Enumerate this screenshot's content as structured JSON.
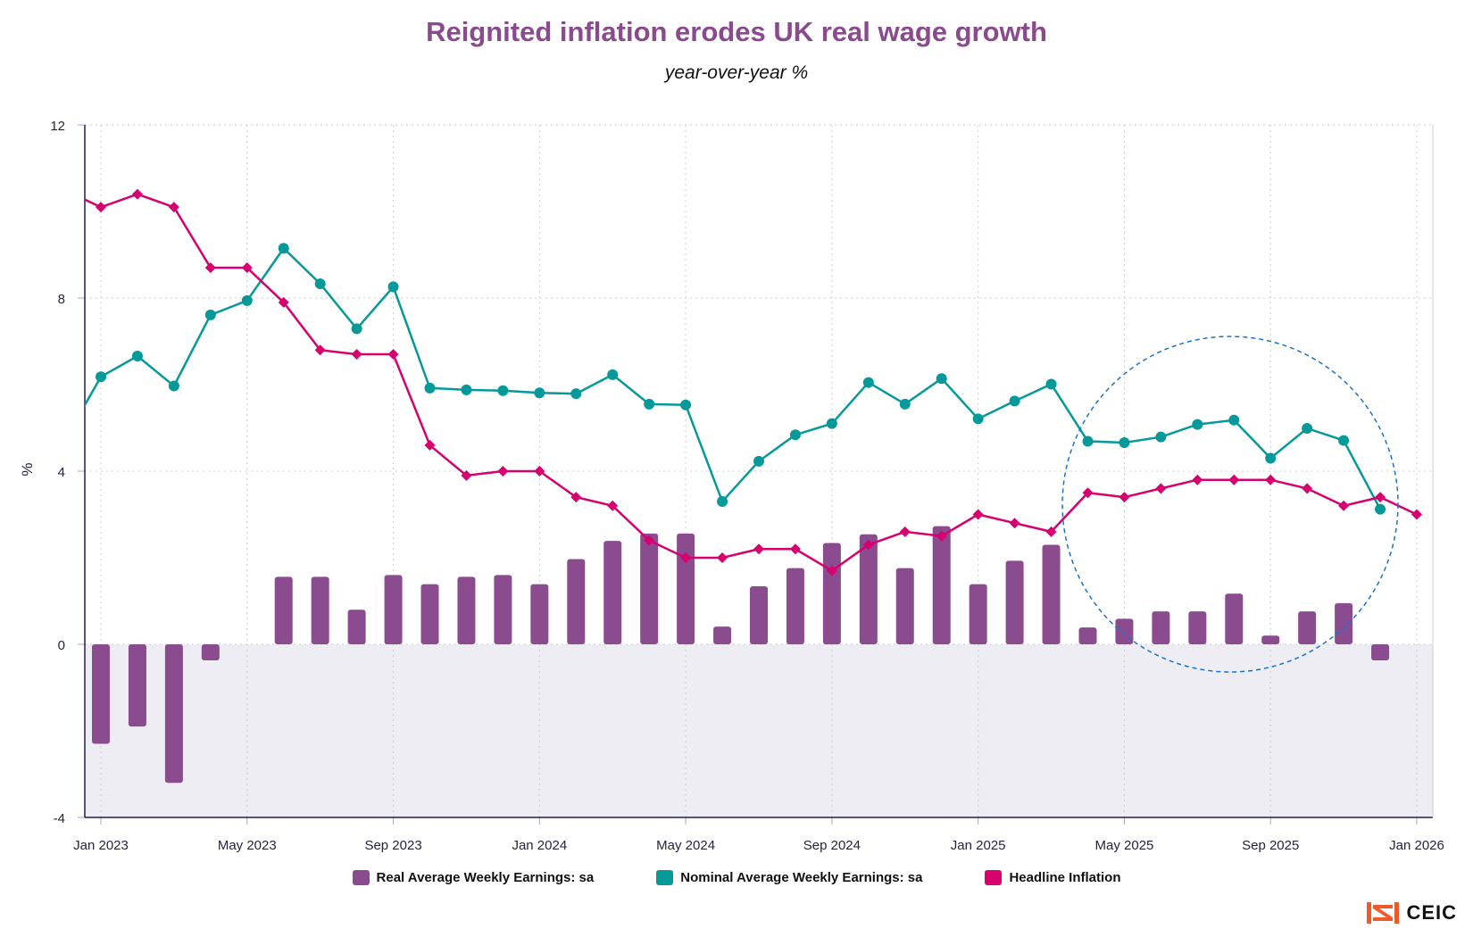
{
  "chart_data": {
    "type": "bar+line",
    "title": "Reignited inflation erodes UK real wage growth",
    "subtitle": "year-over-year %",
    "ylabel": "%",
    "xlabel": "",
    "ylim": [
      -4,
      12
    ],
    "yticks": [
      "-4",
      "0",
      "4",
      "8",
      "12"
    ],
    "xticks": [
      "Jan 2023",
      "May 2023",
      "Sep 2023",
      "Jan 2024",
      "May 2024",
      "Sep 2024",
      "Jan 2025",
      "May 2025",
      "Sep 2025",
      "Jan 2026"
    ],
    "grid": true,
    "legend_position": "bottom",
    "months": [
      "Dec 2022",
      "Jan 2023",
      "Feb 2023",
      "Mar 2023",
      "Apr 2023",
      "May 2023",
      "Jun 2023",
      "Jul 2023",
      "Aug 2023",
      "Sep 2023",
      "Oct 2023",
      "Nov 2023",
      "Dec 2023",
      "Jan 2024",
      "Feb 2024",
      "Mar 2024",
      "Apr 2024",
      "May 2024",
      "Jun 2024",
      "Jul 2024",
      "Aug 2024",
      "Sep 2024",
      "Oct 2024",
      "Nov 2024",
      "Dec 2024",
      "Jan 2025",
      "Feb 2025",
      "Mar 2025",
      "Apr 2025",
      "May 2025",
      "Jun 2025",
      "Jul 2025",
      "Aug 2025",
      "Sep 2025",
      "Oct 2025",
      "Nov 2025",
      "Dec 2025",
      "Jan 2026"
    ],
    "series": [
      {
        "name": "Real Average Weekly Earnings: sa",
        "kind": "bar",
        "color": "#8B4C8F",
        "values": [
          null,
          -2.3,
          -1.9,
          -3.2,
          -0.37,
          0,
          1.56,
          1.56,
          0.8,
          1.6,
          1.39,
          1.56,
          1.6,
          1.39,
          1.97,
          2.39,
          2.56,
          2.56,
          0.41,
          1.34,
          1.76,
          2.34,
          2.54,
          1.76,
          2.73,
          1.39,
          1.93,
          2.3,
          0.39,
          0.59,
          0.76,
          0.76,
          1.17,
          0.2,
          0.76,
          0.95,
          -0.37,
          null
        ]
      },
      {
        "name": "Nominal Average Weekly Earnings: sa",
        "kind": "line",
        "marker": "circle",
        "color": "#06999A",
        "values": [
          4.7,
          6.18,
          6.66,
          5.97,
          7.61,
          7.94,
          9.15,
          8.33,
          7.29,
          8.26,
          5.92,
          5.88,
          5.86,
          5.81,
          5.79,
          6.23,
          5.55,
          5.53,
          3.3,
          4.23,
          4.84,
          5.1,
          6.05,
          5.55,
          6.14,
          5.21,
          5.62,
          6.01,
          4.69,
          4.66,
          4.79,
          5.08,
          5.18,
          4.3,
          4.99,
          4.71,
          3.12,
          null
        ]
      },
      {
        "name": "Headline Inflation",
        "kind": "line",
        "marker": "diamond",
        "color": "#D6006F",
        "values": [
          10.5,
          10.1,
          10.4,
          10.1,
          8.7,
          8.7,
          7.9,
          6.8,
          6.7,
          6.7,
          4.6,
          3.9,
          4.0,
          4.0,
          3.4,
          3.2,
          2.4,
          2.0,
          2.0,
          2.2,
          2.2,
          1.7,
          2.3,
          2.6,
          2.5,
          3.0,
          2.8,
          2.6,
          3.5,
          3.4,
          3.6,
          3.8,
          3.8,
          3.8,
          3.6,
          3.2,
          3.4,
          3.0
        ]
      }
    ],
    "annotation": "dashed-circle-highlight",
    "negative_region_color": "#EEEDF3"
  },
  "legend": [
    "Real Average Weekly Earnings: sa",
    "Nominal Average Weekly Earnings: sa",
    "Headline Inflation"
  ],
  "logo": {
    "text": "CEIC",
    "color": "#F05A28"
  }
}
